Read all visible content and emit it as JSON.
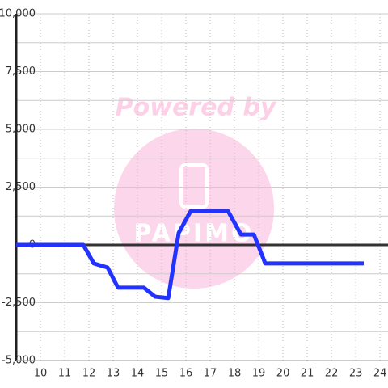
{
  "chart_data": {
    "type": "line",
    "watermark": "Powered by",
    "watermark_logo": "PAPIMO",
    "x": [
      9.0,
      11.77,
      12.2,
      12.77,
      13.2,
      14.27,
      14.73,
      15.27,
      15.7,
      16.2,
      17.73,
      18.27,
      18.8,
      19.27,
      23.33
    ],
    "series": [
      {
        "color": "#2233ff",
        "values": [
          0,
          0,
          -800,
          -980,
          -1850,
          -1850,
          -2240,
          -2300,
          520,
          1470,
          1470,
          450,
          450,
          -800,
          -800
        ]
      }
    ],
    "xlim": [
      9,
      24.33
    ],
    "xticks": [
      10,
      11,
      12,
      13,
      14,
      15,
      16,
      17,
      18,
      19,
      20,
      21,
      22,
      23,
      24
    ],
    "ylim": [
      -5000,
      10000
    ],
    "yticks": [
      {
        "value": -5000,
        "label": "-5,000"
      },
      {
        "value": -2500,
        "label": "-2,500"
      },
      0,
      {
        "value": 2500,
        "label": "2,500"
      },
      {
        "value": 5000,
        "label": "5,000"
      },
      {
        "value": 7500,
        "label": "7,500"
      },
      {
        "value": 10000,
        "label": "10,000"
      }
    ],
    "yminor": [
      -3750,
      -1250,
      1250,
      3750,
      6250,
      8750
    ],
    "grid": true
  }
}
